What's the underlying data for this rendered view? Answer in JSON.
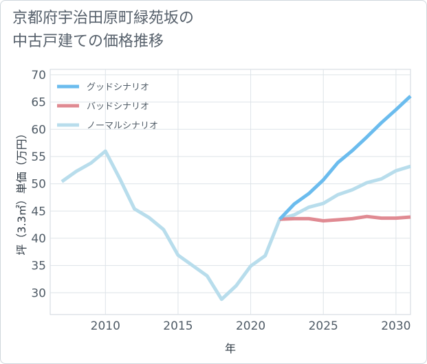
{
  "title_line1": "京都府宇治田原町緑苑坂の",
  "title_line2": "中古戸建ての価格推移",
  "chart_data": {
    "type": "line",
    "title": "京都府宇治田原町緑苑坂の中古戸建ての価格推移",
    "xlabel": "年",
    "ylabel": "坪（3.3㎡）単価（万円）",
    "xlim": [
      2006.2,
      2031
    ],
    "ylim": [
      26,
      71
    ],
    "xticks": [
      2010,
      2015,
      2020,
      2025,
      2030
    ],
    "yticks": [
      30,
      35,
      40,
      45,
      50,
      55,
      60,
      65,
      70
    ],
    "grid": true,
    "legend_position": "top-left",
    "series": [
      {
        "name": "グッドシナリオ",
        "color": "#6bbcee",
        "x": [
          2022,
          2023,
          2024,
          2025,
          2026,
          2027,
          2028,
          2029,
          2030,
          2031
        ],
        "y": [
          43.5,
          46.3,
          48.2,
          50.7,
          53.9,
          56.1,
          58.6,
          61.2,
          63.6,
          66.1
        ]
      },
      {
        "name": "バッドシナリオ",
        "color": "#e08a92",
        "x": [
          2022,
          2023,
          2024,
          2025,
          2026,
          2027,
          2028,
          2029,
          2030,
          2031
        ],
        "y": [
          43.5,
          43.6,
          43.6,
          43.2,
          43.4,
          43.6,
          44.0,
          43.7,
          43.7,
          43.9
        ]
      },
      {
        "name": "ノーマルシナリオ",
        "color": "#b8ddec",
        "x": [
          2007,
          2008,
          2009,
          2010,
          2011,
          2012,
          2013,
          2014,
          2015,
          2016,
          2017,
          2018,
          2019,
          2020,
          2021,
          2022,
          2023,
          2024,
          2025,
          2026,
          2027,
          2028,
          2029,
          2030,
          2031
        ],
        "y": [
          50.4,
          52.3,
          53.8,
          56.0,
          50.9,
          45.4,
          43.8,
          41.6,
          36.9,
          35.0,
          33.1,
          28.8,
          31.3,
          34.9,
          36.8,
          43.5,
          44.3,
          45.7,
          46.4,
          48.0,
          48.9,
          50.2,
          50.9,
          52.4,
          53.2
        ]
      }
    ]
  }
}
